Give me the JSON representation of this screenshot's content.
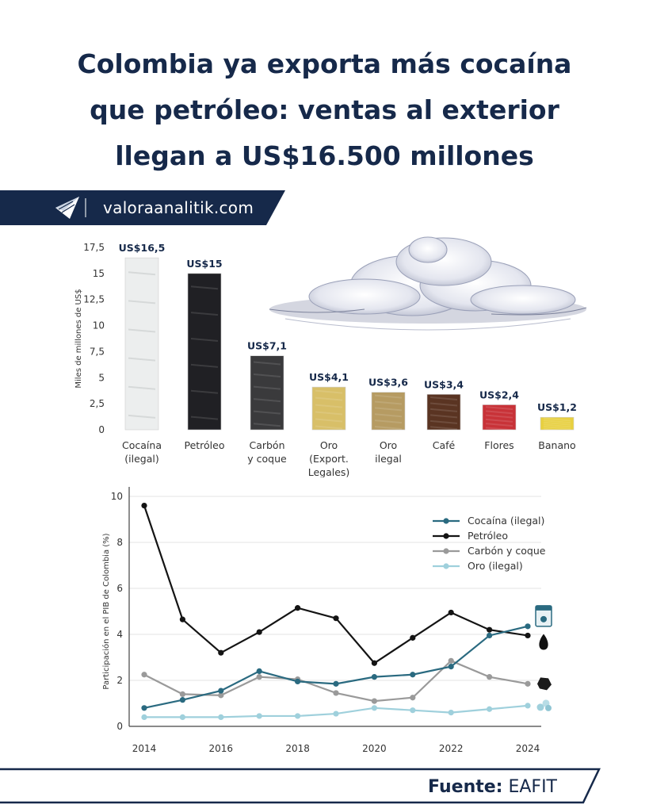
{
  "title_lines": [
    "Colombia ya exporta más cocaína",
    "que petróleo: ventas al exterior",
    "llegan a US$16.500 millones"
  ],
  "brand": {
    "site": "valoraanalitik.com",
    "logo_icon": "paper-plane-icon",
    "color": "#16294a"
  },
  "source": {
    "label": "Fuente:",
    "value": "EAFIT"
  },
  "chart_data": [
    {
      "type": "bar",
      "ylabel": "Miles de millones de US$",
      "ylim": [
        0,
        17.5
      ],
      "yticks": [
        "17,5",
        "15",
        "12,5",
        "10",
        "7,5",
        "5",
        "2,5",
        "0"
      ],
      "ytick_values": [
        17.5,
        15,
        12.5,
        10,
        7.5,
        5,
        2.5,
        0
      ],
      "categories": [
        [
          "Cocaína",
          "(ilegal)"
        ],
        [
          "Petróleo"
        ],
        [
          "Carbón",
          "y coque"
        ],
        [
          "Oro",
          "(Export.",
          "Legales)"
        ],
        [
          "Oro",
          "ilegal"
        ],
        [
          "Café"
        ],
        [
          "Flores"
        ],
        [
          "Banano"
        ]
      ],
      "values": [
        16.5,
        15,
        7.1,
        4.1,
        3.6,
        3.4,
        2.4,
        1.2
      ],
      "value_labels": [
        "US$16,5",
        "US$15",
        "US$7,1",
        "US$4,1",
        "US$3,6",
        "US$3,4",
        "US$2,4",
        "US$1,2"
      ],
      "bar_colors": [
        "#eceeee",
        "#202024",
        "#3a3a3c",
        "#d8bf68",
        "#b69b62",
        "#5a3422",
        "#c83238",
        "#e8d040"
      ]
    },
    {
      "type": "line",
      "ylabel": "Participación en el PIB de Colombia (%)",
      "ylim": [
        0,
        10
      ],
      "yticks": [
        0,
        2,
        4,
        6,
        8,
        10
      ],
      "xticks": [
        2014,
        2016,
        2018,
        2020,
        2022,
        2024
      ],
      "x": [
        2014,
        2015,
        2016,
        2017,
        2018,
        2019,
        2020,
        2021,
        2022,
        2023,
        2024
      ],
      "grid": true,
      "legend": "top-right",
      "series": [
        {
          "name": "Cocaína (ilegal)",
          "color": "#2a6a80",
          "icon": "coke-bag-icon",
          "values": [
            0.8,
            1.15,
            1.55,
            2.4,
            1.95,
            1.85,
            2.15,
            2.25,
            2.6,
            3.95,
            4.35
          ]
        },
        {
          "name": "Petróleo",
          "color": "#141414",
          "icon": "oil-drop-icon",
          "values": [
            9.6,
            4.65,
            3.2,
            4.1,
            5.15,
            4.7,
            2.75,
            3.85,
            4.95,
            4.2,
            3.95
          ]
        },
        {
          "name": "Carbón y coque",
          "color": "#9a9a9a",
          "icon": "coal-lump-icon",
          "values": [
            2.25,
            1.4,
            1.35,
            2.15,
            2.05,
            1.45,
            1.1,
            1.25,
            2.85,
            2.15,
            1.85
          ]
        },
        {
          "name": "Oro (ilegal)",
          "color": "#9fd0dc",
          "icon": "gold-pellets-icon",
          "values": [
            0.4,
            0.4,
            0.4,
            0.45,
            0.45,
            0.55,
            0.8,
            0.7,
            0.6,
            0.75,
            0.9
          ]
        }
      ]
    }
  ]
}
